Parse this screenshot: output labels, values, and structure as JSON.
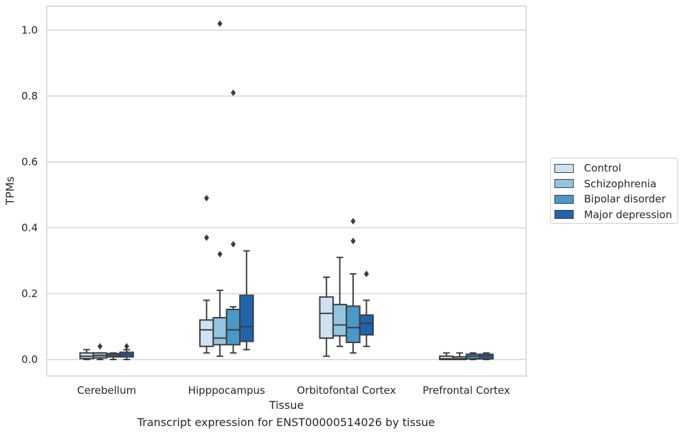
{
  "caption": "Transcript expression for ENST00000514026 by tissue",
  "chart_data": {
    "type": "box",
    "xlabel": "Tissue",
    "ylabel": "TPMs",
    "ylim": [
      -0.05,
      1.07
    ],
    "yticks": [
      "0.0",
      "0.2",
      "0.4",
      "0.6",
      "0.8",
      "1.0"
    ],
    "grid": "horizontal",
    "legend_position": "right",
    "categories": [
      "Cerebellum",
      "Hipppocampus",
      "Orbitofontal Cortex",
      "Prefrontal Cortex"
    ],
    "series": [
      {
        "name": "Control",
        "color": "#d0e1f2",
        "boxes": [
          {
            "whislo": 0.0,
            "q1": 0.003,
            "med": 0.01,
            "q3": 0.02,
            "whishi": 0.03,
            "fliers": []
          },
          {
            "whislo": 0.02,
            "q1": 0.04,
            "med": 0.09,
            "q3": 0.12,
            "whishi": 0.18,
            "fliers": [
              0.49,
              0.37
            ]
          },
          {
            "whislo": 0.01,
            "q1": 0.065,
            "med": 0.14,
            "q3": 0.19,
            "whishi": 0.25,
            "fliers": []
          },
          {
            "whislo": 0.0,
            "q1": 0.0,
            "med": 0.002,
            "q3": 0.01,
            "whishi": 0.02,
            "fliers": []
          }
        ]
      },
      {
        "name": "Schizophrenia",
        "color": "#94c4df",
        "boxes": [
          {
            "whislo": 0.0,
            "q1": 0.005,
            "med": 0.012,
            "q3": 0.02,
            "whishi": 0.02,
            "fliers": [
              0.04
            ]
          },
          {
            "whislo": 0.01,
            "q1": 0.045,
            "med": 0.065,
            "q3": 0.127,
            "whishi": 0.21,
            "fliers": [
              1.02,
              0.32
            ]
          },
          {
            "whislo": 0.04,
            "q1": 0.072,
            "med": 0.105,
            "q3": 0.167,
            "whishi": 0.31,
            "fliers": []
          },
          {
            "whislo": 0.0,
            "q1": 0.0,
            "med": 0.002,
            "q3": 0.008,
            "whishi": 0.02,
            "fliers": []
          }
        ]
      },
      {
        "name": "Bipolar disorder",
        "color": "#4a98c9",
        "boxes": [
          {
            "whislo": 0.0,
            "q1": 0.008,
            "med": 0.013,
            "q3": 0.018,
            "whishi": 0.02,
            "fliers": []
          },
          {
            "whislo": 0.02,
            "q1": 0.045,
            "med": 0.09,
            "q3": 0.152,
            "whishi": 0.16,
            "fliers": [
              0.81,
              0.35
            ]
          },
          {
            "whislo": 0.02,
            "q1": 0.052,
            "med": 0.097,
            "q3": 0.162,
            "whishi": 0.26,
            "fliers": [
              0.42,
              0.36
            ]
          },
          {
            "whislo": 0.0,
            "q1": 0.002,
            "med": 0.01,
            "q3": 0.016,
            "whishi": 0.02,
            "fliers": []
          }
        ]
      },
      {
        "name": "Major depression",
        "color": "#2164ab",
        "boxes": [
          {
            "whislo": 0.0,
            "q1": 0.008,
            "med": 0.015,
            "q3": 0.022,
            "whishi": 0.03,
            "fliers": [
              0.04
            ]
          },
          {
            "whislo": 0.03,
            "q1": 0.055,
            "med": 0.1,
            "q3": 0.195,
            "whishi": 0.33,
            "fliers": []
          },
          {
            "whislo": 0.04,
            "q1": 0.075,
            "med": 0.11,
            "q3": 0.135,
            "whishi": 0.18,
            "fliers": [
              0.26
            ]
          },
          {
            "whislo": 0.0,
            "q1": 0.002,
            "med": 0.01,
            "q3": 0.016,
            "whishi": 0.02,
            "fliers": []
          }
        ]
      }
    ]
  }
}
